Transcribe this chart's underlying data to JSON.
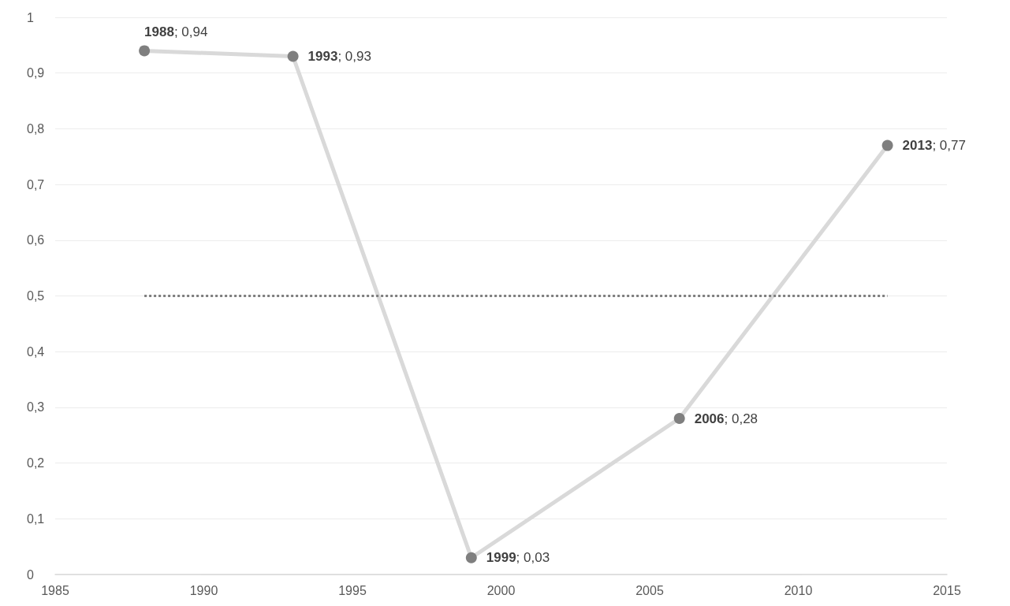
{
  "chart_data": {
    "type": "line",
    "x": [
      1988,
      1993,
      1999,
      2006,
      2013
    ],
    "series": [
      {
        "color": "#d9d9d9",
        "colors": [
          "#7f7f7f",
          "#7f7f7f",
          "#7f7f7f",
          "#7f7f7f",
          "#7f7f7f"
        ],
        "values": [
          0.94,
          0.93,
          0.03,
          0.28,
          0.77
        ],
        "value_labels": [
          "1988; 0,94",
          "1993; 0,93",
          "1999; 0,03",
          "2006; 0,28",
          "2013; 0,77"
        ]
      }
    ],
    "xlim": [
      1985,
      2015
    ],
    "xticks": [
      1985,
      1990,
      1995,
      2000,
      2005,
      2010,
      2015
    ],
    "ylim": [
      0,
      1
    ],
    "yticks": [
      0,
      {
        "value": 0.1,
        "label": "0,1"
      },
      {
        "value": 0.2,
        "label": "0,2"
      },
      {
        "value": 0.3,
        "label": "0,3"
      },
      {
        "value": 0.4,
        "label": "0,4"
      },
      {
        "value": 0.5,
        "label": "0,5"
      },
      {
        "value": 0.6,
        "label": "0,6"
      },
      {
        "value": 0.7,
        "label": "0,7"
      },
      {
        "value": 0.8,
        "label": "0,8"
      },
      {
        "value": 0.9,
        "label": "0,9"
      },
      1
    ],
    "ref_lines": [
      {
        "axis": "y",
        "value": 0.5,
        "color": "#7f7f7f",
        "line_style": "dotted"
      }
    ],
    "grid": "y",
    "marker": "circle",
    "line_style": "solid"
  }
}
